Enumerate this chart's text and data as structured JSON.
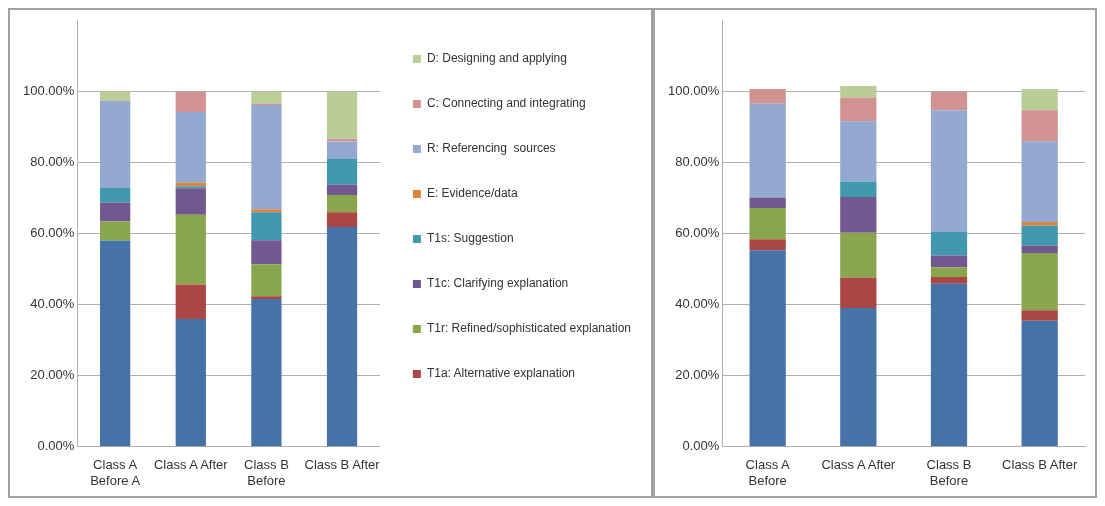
{
  "chart_data": [
    {
      "type": "bar",
      "stacked": true,
      "categories": [
        "Class A Before A",
        "Class A After",
        "Class B Before",
        "Class B After"
      ],
      "ylim": [
        0,
        120
      ],
      "yticks": [
        {
          "value": 0,
          "label": "0.00%"
        },
        {
          "value": 20,
          "label": "20.00%"
        },
        {
          "value": 40,
          "label": "40.00%"
        },
        {
          "value": 60,
          "label": "60.00%"
        },
        {
          "value": 80,
          "label": "80.00%"
        },
        {
          "value": 100,
          "label": "100.00%"
        }
      ],
      "grid": "y",
      "legend": "right",
      "series": [
        {
          "color": "#4572a7",
          "values": [
            58.1,
            36,
            41.6,
            61.9
          ]
        },
        {
          "name": "T1a: Alternative explanation",
          "color": "#aa4643",
          "values": [
            0,
            9.7,
            0.8,
            4.2
          ]
        },
        {
          "name": "T1r: Refined/sophisticated explanation",
          "color": "#89a54e",
          "values": [
            5.4,
            19.7,
            9,
            4.8
          ]
        },
        {
          "name": "T1c: Clarifying explanation",
          "color": "#71588f",
          "values": [
            5.3,
            7.4,
            6.8,
            2.9
          ]
        },
        {
          "name": "T1s: Suggestion",
          "color": "#4198af",
          "values": [
            4.1,
            0.6,
            7.9,
            7.3
          ]
        },
        {
          "name": "E: Evidence/data",
          "color": "#db843d",
          "values": [
            0,
            1,
            0.8,
            0
          ]
        },
        {
          "name": "R: Referencing  sources",
          "color": "#93a9cf",
          "values": [
            24.6,
            19.9,
            29.4,
            4.9
          ]
        },
        {
          "name": "C: Connecting and integrating",
          "color": "#d19392",
          "values": [
            0,
            5.7,
            0.4,
            0.8
          ]
        },
        {
          "name": "D: Designing and applying",
          "color": "#b9cd96",
          "values": [
            2.6,
            0,
            3.3,
            13.2
          ]
        }
      ]
    },
    {
      "type": "bar",
      "stacked": true,
      "categories": [
        "Class A Before",
        "Class A After",
        "Class B Before",
        "Class B After"
      ],
      "ylim": [
        0,
        120
      ],
      "yticks": [
        {
          "value": 0,
          "label": "0.00%"
        },
        {
          "value": 20,
          "label": "20.00%"
        },
        {
          "value": 40,
          "label": "40.00%"
        },
        {
          "value": 60,
          "label": "60.00%"
        },
        {
          "value": 80,
          "label": "80.00%"
        },
        {
          "value": 100,
          "label": "100.00%"
        }
      ],
      "grid": "y",
      "series": [
        {
          "color": "#4572a7",
          "values": [
            55.4,
            39.1,
            45.9,
            35.5
          ]
        },
        {
          "color": "#aa4643",
          "values": [
            3.1,
            8.5,
            1.9,
            3
          ]
        },
        {
          "color": "#89a54e",
          "values": [
            8.8,
            12.7,
            2.8,
            16.1
          ]
        },
        {
          "color": "#71588f",
          "values": [
            2.9,
            10.1,
            3.3,
            2.1
          ]
        },
        {
          "color": "#4198af",
          "values": [
            0,
            4.3,
            6.6,
            5.6
          ]
        },
        {
          "color": "#db843d",
          "values": [
            0,
            0,
            0,
            1
          ]
        },
        {
          "color": "#93a9cf",
          "values": [
            26.4,
            17,
            34.3,
            22.8
          ]
        },
        {
          "color": "#d19392",
          "values": [
            4.2,
            6.7,
            5.2,
            8.7
          ]
        },
        {
          "color": "#b9cd96",
          "values": [
            0,
            3.2,
            0,
            6
          ]
        }
      ]
    }
  ]
}
